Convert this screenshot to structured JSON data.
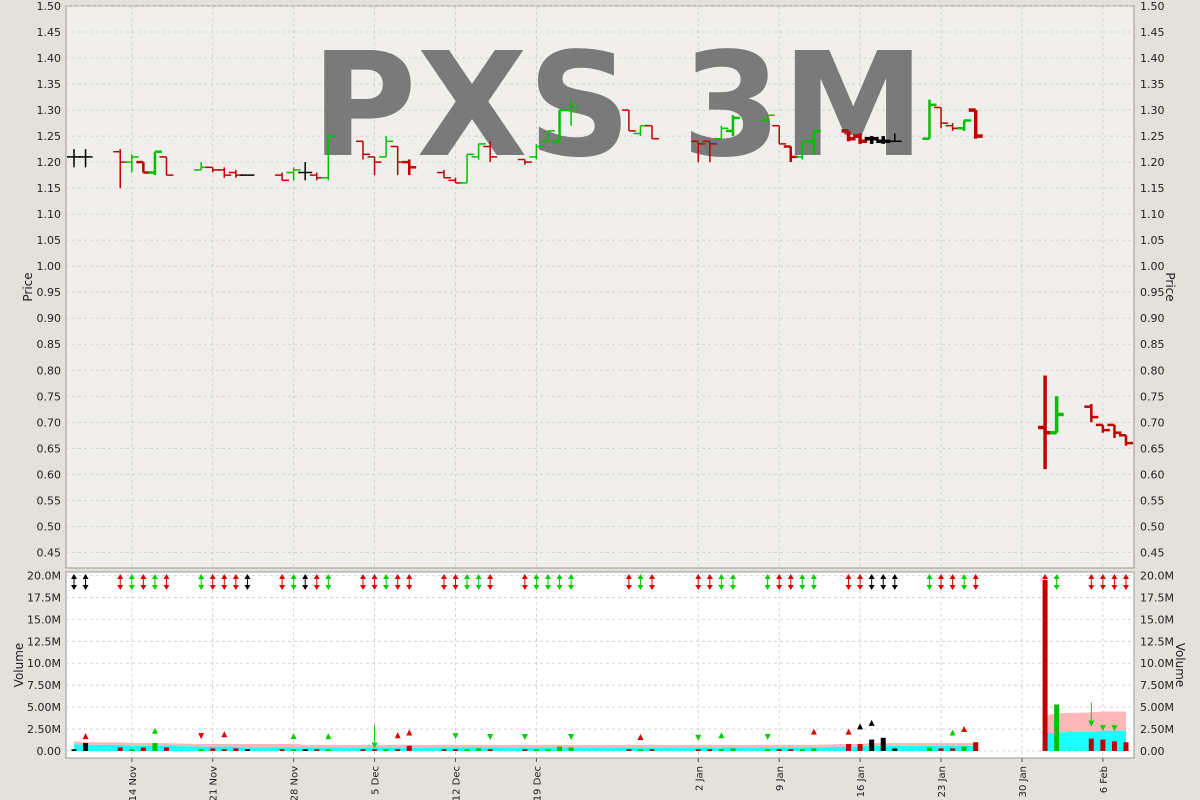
{
  "chart_data": [
    {
      "type": "ohlc",
      "watermark": "PXS 3M",
      "ylabel": "Price",
      "ylim": [
        0.42,
        1.5
      ],
      "yticks": [
        "1.50",
        "1.45",
        "1.40",
        "1.35",
        "1.30",
        "1.25",
        "1.20",
        "1.15",
        "1.10",
        "1.05",
        "1.00",
        "0.95",
        "0.90",
        "0.85",
        "0.80",
        "0.75",
        "0.70",
        "0.65",
        "0.60",
        "0.55",
        "0.50",
        "0.45"
      ],
      "grid": true,
      "colors": {
        "up": "#00c000",
        "down": "#c00000",
        "flat": "#000000",
        "background": "#f0efec",
        "grid": "#cccccc"
      },
      "bars": [
        {
          "d": "2017-11-09",
          "o": 1.21,
          "h": 1.225,
          "l": 1.19,
          "c": 1.21,
          "w": 1
        },
        {
          "d": "2017-11-10",
          "o": 1.21,
          "h": 1.225,
          "l": 1.19,
          "c": 1.21,
          "w": 1
        },
        {
          "d": "2017-11-13",
          "o": 1.22,
          "h": 1.225,
          "l": 1.15,
          "c": 1.2,
          "w": 1
        },
        {
          "d": "2017-11-14",
          "o": 1.2,
          "h": 1.215,
          "l": 1.18,
          "c": 1.21,
          "w": 1
        },
        {
          "d": "2017-11-15",
          "o": 1.2,
          "h": 1.2,
          "l": 1.18,
          "c": 1.18,
          "w": 2
        },
        {
          "d": "2017-11-16",
          "o": 1.18,
          "h": 1.22,
          "l": 1.175,
          "c": 1.22,
          "w": 2
        },
        {
          "d": "2017-11-17",
          "o": 1.21,
          "h": 1.21,
          "l": 1.175,
          "c": 1.175,
          "w": 1
        },
        {
          "d": "2017-11-20",
          "o": 1.185,
          "h": 1.2,
          "l": 1.185,
          "c": 1.19,
          "w": 1
        },
        {
          "d": "2017-11-21",
          "o": 1.19,
          "h": 1.19,
          "l": 1.18,
          "c": 1.185,
          "w": 1
        },
        {
          "d": "2017-11-22",
          "o": 1.185,
          "h": 1.19,
          "l": 1.17,
          "c": 1.175,
          "w": 1
        },
        {
          "d": "2017-11-23",
          "o": 1.18,
          "h": 1.185,
          "l": 1.17,
          "c": 1.175,
          "w": 1
        },
        {
          "d": "2017-11-24",
          "o": 1.175,
          "h": 1.175,
          "l": 1.175,
          "c": 1.175,
          "w": 1
        },
        {
          "d": "2017-11-27",
          "o": 1.175,
          "h": 1.18,
          "l": 1.165,
          "c": 1.165,
          "w": 1
        },
        {
          "d": "2017-11-28",
          "o": 1.18,
          "h": 1.19,
          "l": 1.165,
          "c": 1.185,
          "w": 1
        },
        {
          "d": "2017-11-29",
          "o": 1.18,
          "h": 1.2,
          "l": 1.165,
          "c": 1.18,
          "w": 1
        },
        {
          "d": "2017-11-30",
          "o": 1.175,
          "h": 1.18,
          "l": 1.165,
          "c": 1.17,
          "w": 1
        },
        {
          "d": "2017-12-01",
          "o": 1.17,
          "h": 1.25,
          "l": 1.165,
          "c": 1.25,
          "w": 1
        },
        {
          "d": "2017-12-04",
          "o": 1.24,
          "h": 1.24,
          "l": 1.205,
          "c": 1.215,
          "w": 1
        },
        {
          "d": "2017-12-05",
          "o": 1.21,
          "h": 1.21,
          "l": 1.175,
          "c": 1.2,
          "w": 1
        },
        {
          "d": "2017-12-06",
          "o": 1.21,
          "h": 1.25,
          "l": 1.21,
          "c": 1.24,
          "w": 1
        },
        {
          "d": "2017-12-07",
          "o": 1.23,
          "h": 1.23,
          "l": 1.175,
          "c": 1.2,
          "w": 1
        },
        {
          "d": "2017-12-08",
          "o": 1.2,
          "h": 1.205,
          "l": 1.175,
          "c": 1.19,
          "w": 2
        },
        {
          "d": "2017-12-11",
          "o": 1.18,
          "h": 1.185,
          "l": 1.17,
          "c": 1.17,
          "w": 1
        },
        {
          "d": "2017-12-12",
          "o": 1.165,
          "h": 1.17,
          "l": 1.16,
          "c": 1.16,
          "w": 1
        },
        {
          "d": "2017-12-13",
          "o": 1.16,
          "h": 1.215,
          "l": 1.16,
          "c": 1.215,
          "w": 1
        },
        {
          "d": "2017-12-14",
          "o": 1.21,
          "h": 1.235,
          "l": 1.205,
          "c": 1.235,
          "w": 1
        },
        {
          "d": "2017-12-15",
          "o": 1.23,
          "h": 1.24,
          "l": 1.2,
          "c": 1.21,
          "w": 1
        },
        {
          "d": "2017-12-18",
          "o": 1.205,
          "h": 1.205,
          "l": 1.195,
          "c": 1.2,
          "w": 1
        },
        {
          "d": "2017-12-19",
          "o": 1.21,
          "h": 1.235,
          "l": 1.205,
          "c": 1.23,
          "w": 1
        },
        {
          "d": "2017-12-20",
          "o": 1.24,
          "h": 1.26,
          "l": 1.24,
          "c": 1.26,
          "w": 1
        },
        {
          "d": "2017-12-21",
          "o": 1.24,
          "h": 1.3,
          "l": 1.24,
          "c": 1.3,
          "w": 2
        },
        {
          "d": "2017-12-22",
          "o": 1.3,
          "h": 1.32,
          "l": 1.27,
          "c": 1.305,
          "w": 1
        },
        {
          "d": "2017-12-27",
          "o": 1.3,
          "h": 1.3,
          "l": 1.26,
          "c": 1.26,
          "w": 1
        },
        {
          "d": "2017-12-28",
          "o": 1.255,
          "h": 1.27,
          "l": 1.25,
          "c": 1.27,
          "w": 1
        },
        {
          "d": "2017-12-29",
          "o": 1.27,
          "h": 1.27,
          "l": 1.245,
          "c": 1.245,
          "w": 1
        },
        {
          "d": "2018-01-02",
          "o": 1.24,
          "h": 1.24,
          "l": 1.2,
          "c": 1.235,
          "w": 1
        },
        {
          "d": "2018-01-03",
          "o": 1.24,
          "h": 1.24,
          "l": 1.2,
          "c": 1.235,
          "w": 1
        },
        {
          "d": "2018-01-04",
          "o": 1.245,
          "h": 1.27,
          "l": 1.245,
          "c": 1.265,
          "w": 1
        },
        {
          "d": "2018-01-05",
          "o": 1.26,
          "h": 1.29,
          "l": 1.25,
          "c": 1.285,
          "w": 2
        },
        {
          "d": "2018-01-08",
          "o": 1.28,
          "h": 1.29,
          "l": 1.275,
          "c": 1.29,
          "w": 1
        },
        {
          "d": "2018-01-09",
          "o": 1.27,
          "h": 1.27,
          "l": 1.235,
          "c": 1.235,
          "w": 1
        },
        {
          "d": "2018-01-10",
          "o": 1.23,
          "h": 1.23,
          "l": 1.2,
          "c": 1.21,
          "w": 2
        },
        {
          "d": "2018-01-11",
          "o": 1.21,
          "h": 1.24,
          "l": 1.205,
          "c": 1.24,
          "w": 1
        },
        {
          "d": "2018-01-12",
          "o": 1.24,
          "h": 1.26,
          "l": 1.215,
          "c": 1.26,
          "w": 2
        },
        {
          "d": "2018-01-15",
          "o": 1.26,
          "h": 1.26,
          "l": 1.24,
          "c": 1.245,
          "w": 3
        },
        {
          "d": "2018-01-16",
          "o": 1.25,
          "h": 1.255,
          "l": 1.235,
          "c": 1.24,
          "w": 3
        },
        {
          "d": "2018-01-17",
          "o": 1.245,
          "h": 1.25,
          "l": 1.235,
          "c": 1.245,
          "w": 3
        },
        {
          "d": "2018-01-18",
          "o": 1.24,
          "h": 1.25,
          "l": 1.235,
          "c": 1.24,
          "w": 3
        },
        {
          "d": "2018-01-19",
          "o": 1.24,
          "h": 1.255,
          "l": 1.24,
          "c": 1.24,
          "w": 1
        },
        {
          "d": "2018-01-22",
          "o": 1.245,
          "h": 1.32,
          "l": 1.245,
          "c": 1.31,
          "w": 2
        },
        {
          "d": "2018-01-23",
          "o": 1.305,
          "h": 1.305,
          "l": 1.265,
          "c": 1.275,
          "w": 1
        },
        {
          "d": "2018-01-24",
          "o": 1.27,
          "h": 1.275,
          "l": 1.26,
          "c": 1.265,
          "w": 1
        },
        {
          "d": "2018-01-25",
          "o": 1.265,
          "h": 1.28,
          "l": 1.26,
          "c": 1.28,
          "w": 2
        },
        {
          "d": "2018-01-26",
          "o": 1.3,
          "h": 1.3,
          "l": 1.245,
          "c": 1.25,
          "w": 3
        },
        {
          "d": "2018-02-01",
          "o": 0.69,
          "h": 0.79,
          "l": 0.61,
          "c": 0.68,
          "w": 3
        },
        {
          "d": "2018-02-02",
          "o": 0.68,
          "h": 0.75,
          "l": 0.68,
          "c": 0.715,
          "w": 3
        },
        {
          "d": "2018-02-05",
          "o": 0.73,
          "h": 0.735,
          "l": 0.7,
          "c": 0.71,
          "w": 2
        },
        {
          "d": "2018-02-06",
          "o": 0.695,
          "h": 0.695,
          "l": 0.68,
          "c": 0.685,
          "w": 2
        },
        {
          "d": "2018-02-07",
          "o": 0.695,
          "h": 0.695,
          "l": 0.67,
          "c": 0.68,
          "w": 2
        },
        {
          "d": "2018-02-08",
          "o": 0.675,
          "h": 0.675,
          "l": 0.655,
          "c": 0.66,
          "w": 2
        }
      ]
    },
    {
      "type": "volume",
      "ylabel": "Volume",
      "ylim": [
        -0.8,
        20.4
      ],
      "yunit": "M",
      "yticks": [
        "20.0M",
        "17.5M",
        "15.0M",
        "12.5M",
        "10.0M",
        "7.50M",
        "5.00M",
        "2.50M",
        "0.00"
      ],
      "xticks": [
        "14 Nov",
        "21 Nov",
        "28 Nov",
        "5 Dec",
        "12 Dec",
        "19 Dec",
        "2 Jan",
        "9 Jan",
        "16 Jan",
        "23 Jan",
        "30 Jan",
        "6 Feb"
      ],
      "volume_millions": [
        0.2,
        0.9,
        0.4,
        0.2,
        0.4,
        0.9,
        0.4,
        0.2,
        0.3,
        0.2,
        0.3,
        0.2,
        0.2,
        0.2,
        0.2,
        0.2,
        0.2,
        0.2,
        0.2,
        0.2,
        0.2,
        0.6,
        0.2,
        0.2,
        0.2,
        0.3,
        0.2,
        0.2,
        0.2,
        0.2,
        0.5,
        0.4,
        0.2,
        0.2,
        0.2,
        0.2,
        0.2,
        0.2,
        0.3,
        0.2,
        0.2,
        0.2,
        0.2,
        0.3,
        0.8,
        0.8,
        1.3,
        1.5,
        0.3,
        0.4,
        0.3,
        0.3,
        0.5,
        1.0,
        19.5,
        5.3,
        1.4,
        1.3,
        1.1,
        1.0
      ],
      "band_lower_millions": [
        0.8,
        0.7,
        0.7,
        0.6,
        0.6,
        0.6,
        0.6,
        0.5,
        0.5,
        0.5,
        0.5,
        0.4,
        0.4,
        0.4,
        0.4,
        0.4,
        0.4,
        0.4,
        0.4,
        0.4,
        0.4,
        0.4,
        0.4,
        0.4,
        0.4,
        0.4,
        0.4,
        0.4,
        0.4,
        0.4,
        0.4,
        0.4,
        0.4,
        0.4,
        0.4,
        0.4,
        0.4,
        0.4,
        0.4,
        0.4,
        0.4,
        0.4,
        0.4,
        0.4,
        0.5,
        0.5,
        0.6,
        0.6,
        0.6,
        0.6,
        0.6,
        0.6,
        0.6,
        0.6,
        2.0,
        2.1,
        2.2,
        2.3,
        2.3,
        2.3
      ],
      "band_upper_millions": [
        1.1,
        1.0,
        1.0,
        0.9,
        0.9,
        0.9,
        0.9,
        0.8,
        0.8,
        0.8,
        0.8,
        0.8,
        0.8,
        0.8,
        0.7,
        0.7,
        0.7,
        0.7,
        0.7,
        0.7,
        0.7,
        0.7,
        0.7,
        0.7,
        0.7,
        0.7,
        0.7,
        0.7,
        0.7,
        0.7,
        0.7,
        0.7,
        0.7,
        0.7,
        0.7,
        0.7,
        0.7,
        0.7,
        0.7,
        0.7,
        0.7,
        0.7,
        0.7,
        0.7,
        0.8,
        0.8,
        0.9,
        0.9,
        0.9,
        0.9,
        0.9,
        0.9,
        0.9,
        0.9,
        4.0,
        4.3,
        4.4,
        4.5,
        4.5,
        4.5
      ],
      "band_colors": {
        "lower": "#00ffff",
        "upper": "#ffb0b0"
      },
      "markers": [
        {
          "i": 1,
          "t": "up",
          "v": 1.7,
          "c": "red"
        },
        {
          "i": 5,
          "t": "up",
          "v": 2.3,
          "c": "green"
        },
        {
          "i": 7,
          "t": "down",
          "v": 1.7,
          "c": "red"
        },
        {
          "i": 9,
          "t": "up",
          "v": 1.9,
          "c": "red"
        },
        {
          "i": 13,
          "t": "up",
          "v": 1.7,
          "c": "green"
        },
        {
          "i": 16,
          "t": "up",
          "v": 1.7,
          "c": "green"
        },
        {
          "i": 18,
          "t": "downlong",
          "v": 0.5,
          "c": "green"
        },
        {
          "i": 20,
          "t": "up",
          "v": 1.8,
          "c": "red"
        },
        {
          "i": 21,
          "t": "up",
          "v": 2.1,
          "c": "red"
        },
        {
          "i": 23,
          "t": "down",
          "v": 1.7,
          "c": "green"
        },
        {
          "i": 26,
          "t": "down",
          "v": 1.6,
          "c": "green"
        },
        {
          "i": 27,
          "t": "down",
          "v": 1.6,
          "c": "green"
        },
        {
          "i": 31,
          "t": "down",
          "v": 1.6,
          "c": "green"
        },
        {
          "i": 33,
          "t": "up",
          "v": 1.6,
          "c": "red"
        },
        {
          "i": 35,
          "t": "down",
          "v": 1.5,
          "c": "green"
        },
        {
          "i": 37,
          "t": "up",
          "v": 1.8,
          "c": "green"
        },
        {
          "i": 39,
          "t": "down",
          "v": 1.6,
          "c": "green"
        },
        {
          "i": 43,
          "t": "up",
          "v": 2.2,
          "c": "red"
        },
        {
          "i": 44,
          "t": "up",
          "v": 2.2,
          "c": "red"
        },
        {
          "i": 45,
          "t": "up",
          "v": 2.8,
          "c": "black"
        },
        {
          "i": 46,
          "t": "up",
          "v": 3.2,
          "c": "black"
        },
        {
          "i": 51,
          "t": "up",
          "v": 2.1,
          "c": "green"
        },
        {
          "i": 52,
          "t": "up",
          "v": 2.5,
          "c": "red"
        },
        {
          "i": 55,
          "t": "down",
          "v": 3.0,
          "c": "green"
        },
        {
          "i": 56,
          "t": "downlong",
          "v": 3.0,
          "c": "green"
        },
        {
          "i": 57,
          "t": "down",
          "v": 2.6,
          "c": "green"
        },
        {
          "i": 58,
          "t": "down",
          "v": 2.6,
          "c": "green"
        }
      ]
    }
  ]
}
